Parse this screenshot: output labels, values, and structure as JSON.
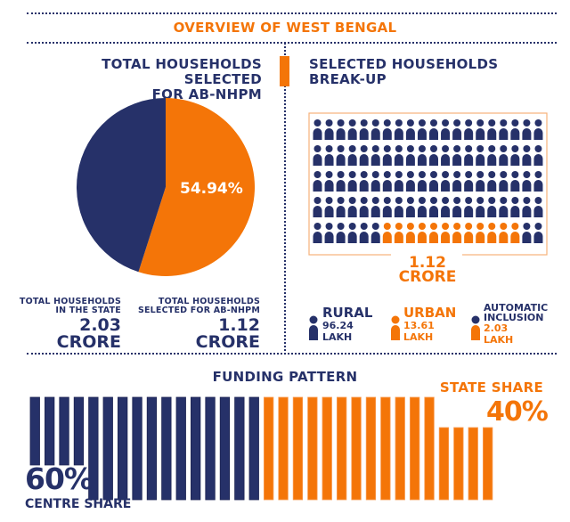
{
  "header": {
    "title": "OVERVIEW OF WEST BENGAL"
  },
  "colors": {
    "navy": "#263169",
    "orange": "#f47508",
    "frame": "#f6b27a"
  },
  "left_panel": {
    "heading_line1": "TOTAL HOUSEHOLDS SELECTED",
    "heading_line2": "FOR AB-NHPM",
    "stats": [
      {
        "label_line1": "TOTAL HOUSEHOLDS",
        "label_line2": "IN THE STATE",
        "value": "2.03",
        "unit": "CRORE"
      },
      {
        "label_line1": "TOTAL HOUSEHOLDS",
        "label_line2": "SELECTED FOR AB-NHPM",
        "value": "1.12",
        "unit": "CRORE"
      }
    ]
  },
  "right_panel": {
    "heading_line1": "SELECTED HOUSEHOLDS",
    "heading_line2": "BREAK-UP",
    "total_value": "1.12",
    "total_unit": "CRORE",
    "legend": [
      {
        "title_line1": "RURAL",
        "title_line2": "",
        "value": "96.24",
        "unit": "LAKH",
        "icon": "person-icon",
        "color": "navy"
      },
      {
        "title_line1": "URBAN",
        "title_line2": "",
        "value": "13.61",
        "unit": "LAKH",
        "icon": "person-icon",
        "color": "orange"
      },
      {
        "title_line1": "AUTOMATIC",
        "title_line2": "INCLUSION",
        "value": "2.03",
        "unit": "LAKH",
        "icon": "person-icon",
        "color": "orange"
      }
    ]
  },
  "funding": {
    "title": "FUNDING PATTERN",
    "centre_label": "CENTRE SHARE",
    "centre_value": "60%",
    "state_label": "STATE SHARE",
    "state_value": "40%"
  },
  "chart_data": [
    {
      "type": "pie",
      "title": "TOTAL HOUSEHOLDS SELECTED FOR AB-NHPM",
      "slices": [
        {
          "name": "Selected for AB-NHPM",
          "value": 54.94,
          "color": "#f47508",
          "label": "54.94%"
        },
        {
          "name": "Not selected",
          "value": 45.06,
          "color": "#263169",
          "label": ""
        }
      ]
    },
    {
      "type": "pictogram",
      "title": "SELECTED HOUSEHOLDS BREAK-UP",
      "columns": 20,
      "rows": 5,
      "last_row_pattern": [
        {
          "color": "navy",
          "count": 6
        },
        {
          "color": "orange",
          "count": 12
        },
        {
          "color": "navy",
          "count": 2
        }
      ]
    },
    {
      "type": "bar",
      "title": "FUNDING PATTERN",
      "series": [
        {
          "name": "CENTRE SHARE",
          "value": 60,
          "bars": 16,
          "short_bars": 4,
          "color": "#263169"
        },
        {
          "name": "STATE SHARE",
          "value": 40,
          "bars": 16,
          "short_bars": 4,
          "color": "#f47508"
        }
      ]
    }
  ]
}
